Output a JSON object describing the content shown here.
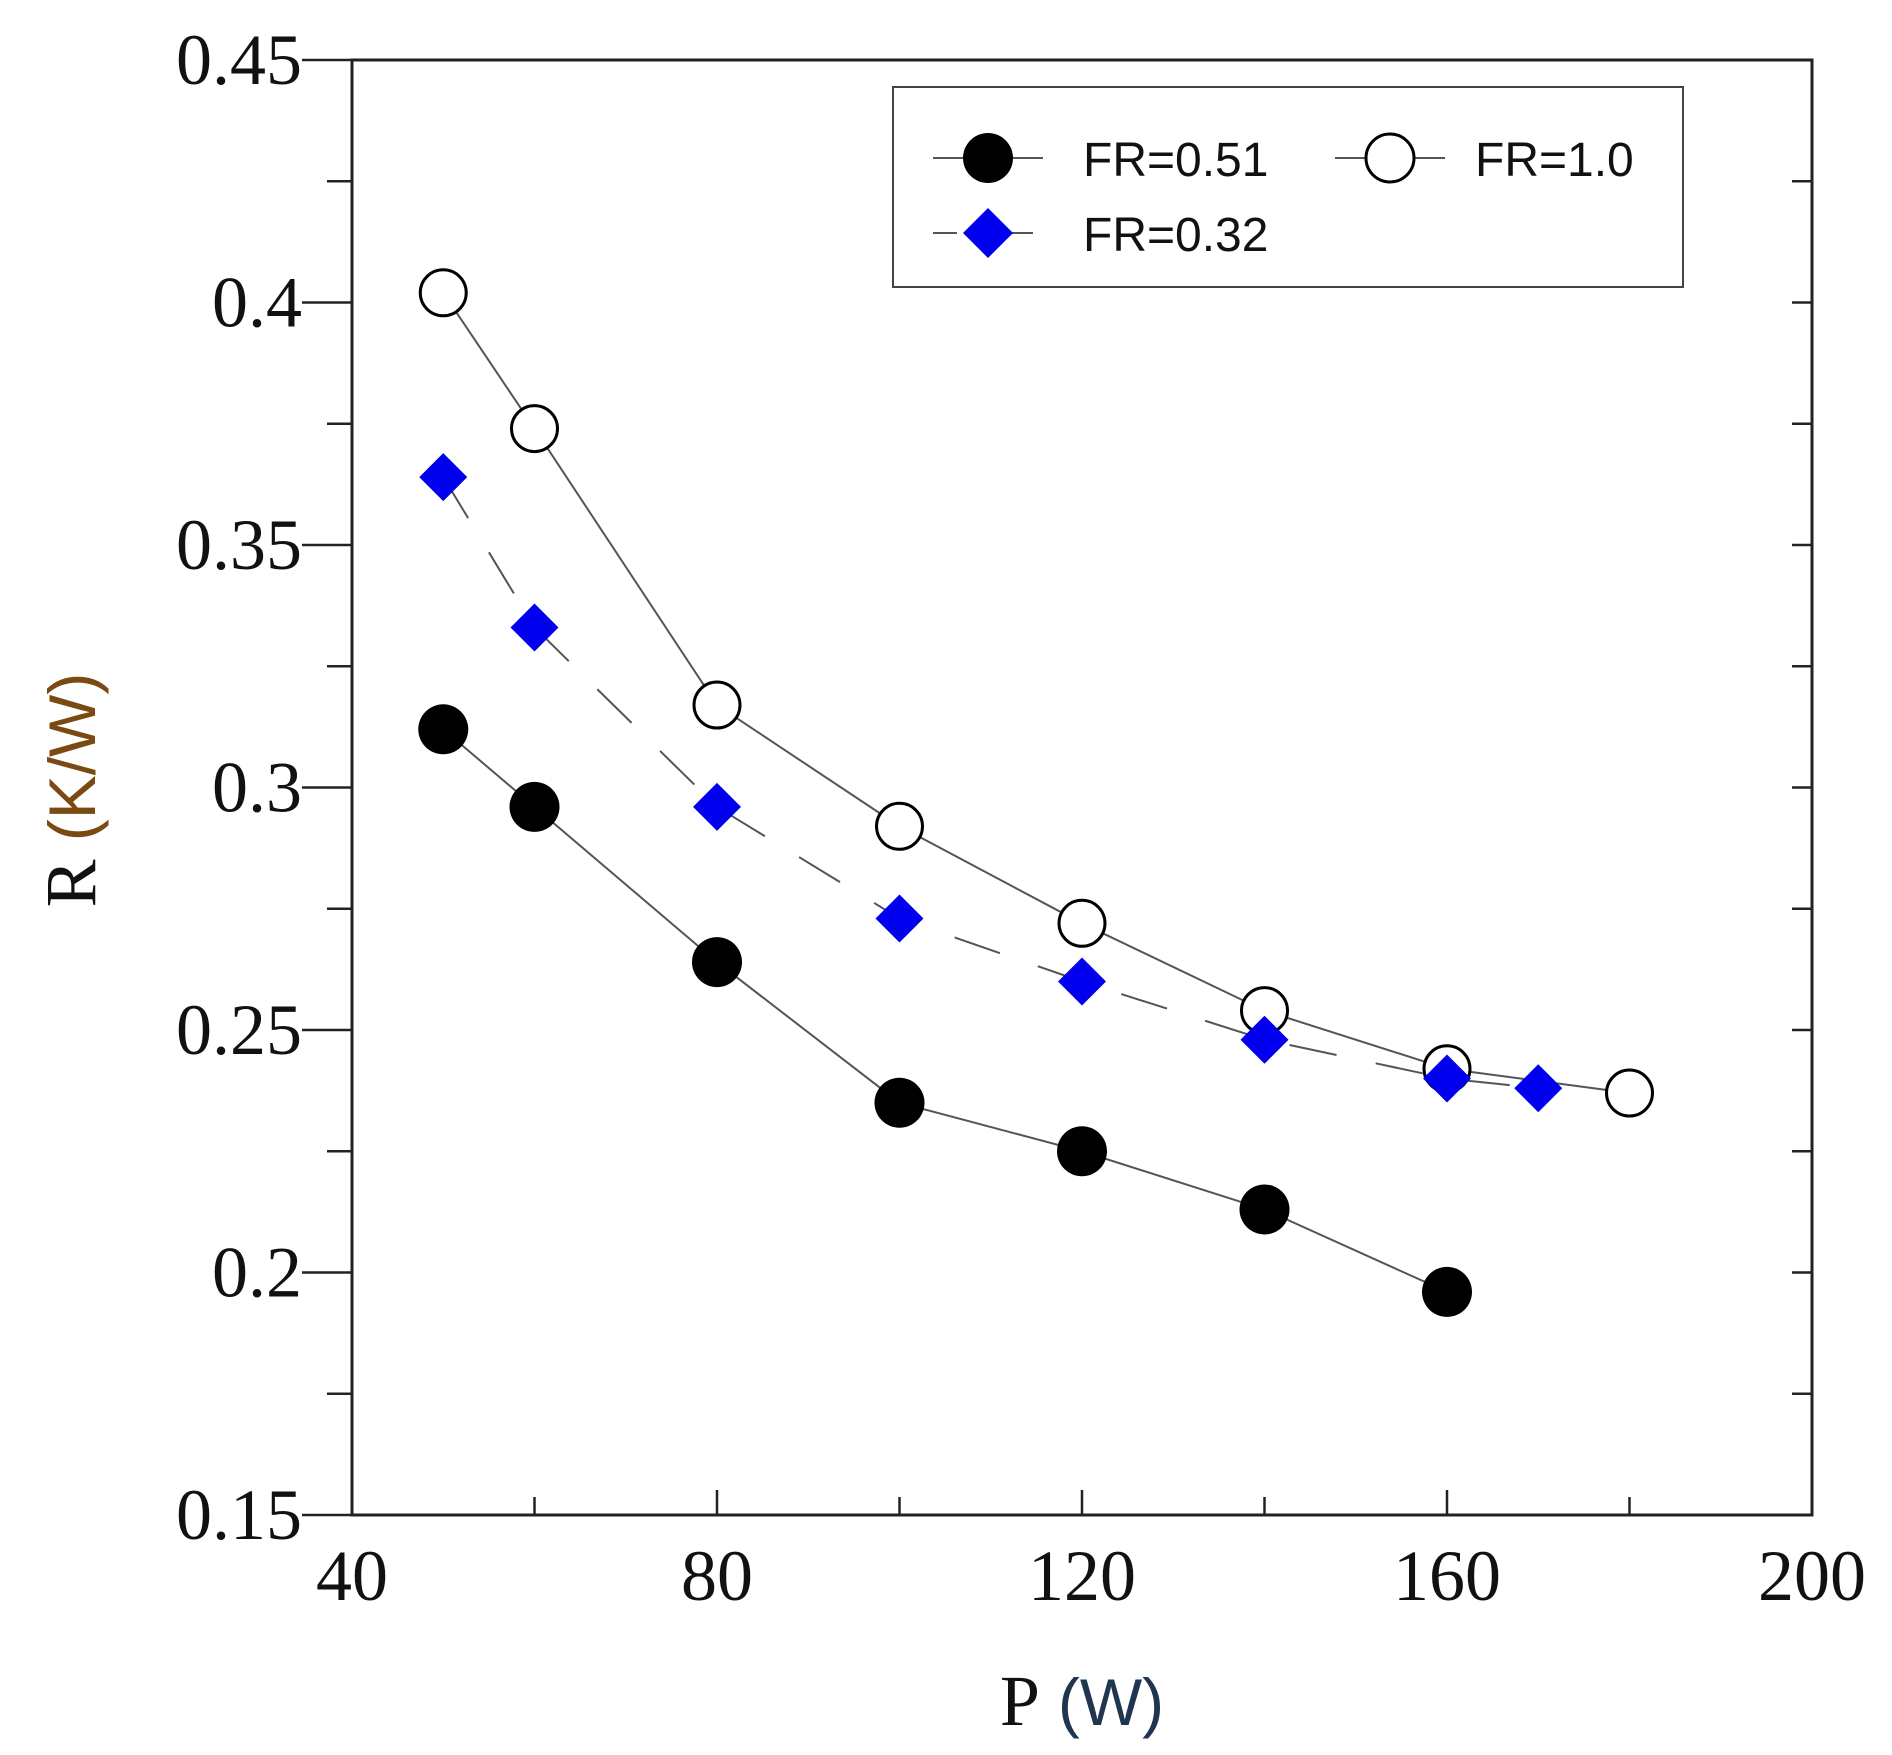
{
  "chart_data": {
    "type": "line",
    "title": "",
    "xlabel": {
      "symbol": "P",
      "unit": "(W)"
    },
    "ylabel": {
      "symbol": "R",
      "unit": "(K/W)"
    },
    "xlim": [
      40,
      200
    ],
    "ylim": [
      0.15,
      0.45
    ],
    "x_ticks": [
      "40",
      "80",
      "120",
      "160",
      "200"
    ],
    "y_ticks": [
      "0.15",
      "0.2",
      "0.25",
      "0.3",
      "0.35",
      "0.4",
      "0.45"
    ],
    "grid": false,
    "legend_position": "top-right",
    "series": [
      {
        "name": "FR=0.51",
        "marker": "filled-circle",
        "line": "solid",
        "color": "#000000",
        "x": [
          50,
          60,
          80,
          100,
          120,
          140,
          160
        ],
        "y": [
          0.312,
          0.296,
          0.264,
          0.235,
          0.225,
          0.213,
          0.196
        ]
      },
      {
        "name": "FR=1.0",
        "marker": "open-circle",
        "line": "solid",
        "color": "#000000",
        "x": [
          50,
          60,
          80,
          100,
          120,
          140,
          160,
          180
        ],
        "y": [
          0.402,
          0.374,
          0.317,
          0.292,
          0.272,
          0.254,
          0.242,
          0.237
        ]
      },
      {
        "name": "FR=0.32",
        "marker": "diamond",
        "line": "dashed",
        "color": "#0000ee",
        "x": [
          50,
          60,
          80,
          100,
          120,
          140,
          160,
          170
        ],
        "y": [
          0.364,
          0.333,
          0.296,
          0.273,
          0.26,
          0.248,
          0.24,
          0.238
        ]
      }
    ]
  }
}
